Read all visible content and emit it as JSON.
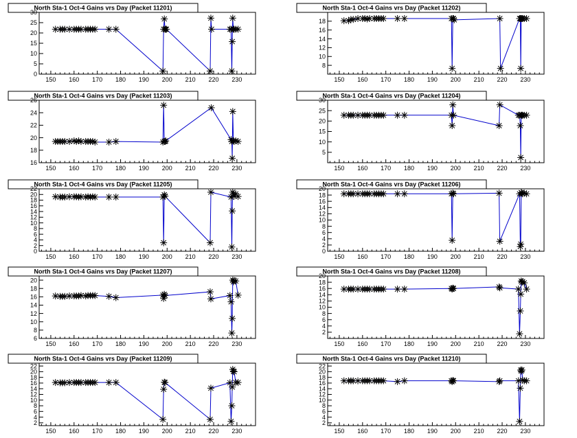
{
  "chart_data": [
    {
      "type": "line",
      "title": "North Sta-1 Oct-4 Gains vrs Day (Packet 11201)",
      "xlim": [
        145,
        238
      ],
      "ylim": [
        0,
        30
      ],
      "xticks": [
        150,
        160,
        170,
        180,
        190,
        200,
        210,
        220,
        230
      ],
      "yticks": [
        0,
        5,
        10,
        15,
        20,
        25,
        30
      ],
      "series": [
        {
          "x": [
            152,
            154,
            155,
            156,
            158,
            160,
            161,
            162,
            163,
            165,
            166,
            167,
            168,
            169,
            175,
            178,
            198.2,
            198.5,
            198.8,
            199.1,
            199.4,
            199.7,
            218.5,
            218.8,
            219.1,
            227,
            227.5,
            227.8,
            228,
            228.2,
            228.5,
            228.8,
            229.5,
            230.5
          ],
          "y": [
            21.8,
            21.8,
            21.8,
            21.8,
            21.8,
            21.8,
            21.8,
            21.8,
            21.8,
            21.8,
            21.8,
            21.8,
            21.8,
            21.8,
            21.8,
            21.8,
            1.5,
            21.8,
            26.8,
            21.8,
            21.8,
            21.8,
            1.5,
            27.2,
            21.8,
            21.8,
            21.8,
            1.5,
            15.8,
            27.2,
            21.8,
            21.8,
            21.8,
            21.8
          ]
        }
      ]
    },
    {
      "type": "line",
      "title": "North Sta-1 Oct-4 Gains vrs Day (Packet 11202)",
      "xlim": [
        145,
        238
      ],
      "ylim": [
        6,
        20
      ],
      "xticks": [
        150,
        160,
        170,
        180,
        190,
        200,
        210,
        220,
        230
      ],
      "yticks": [
        8,
        10,
        12,
        14,
        16,
        18
      ],
      "series": [
        {
          "x": [
            152,
            154,
            155,
            156,
            158,
            160,
            161,
            162,
            163,
            165,
            166,
            167,
            168,
            169,
            175,
            178,
            198.2,
            198.5,
            198.8,
            199.1,
            199.4,
            219,
            219.3,
            227.5,
            227.8,
            228,
            228.2,
            228.5,
            228.8,
            229.5,
            230.5
          ],
          "y": [
            18.1,
            18.1,
            18.4,
            18.4,
            18.6,
            18.6,
            18.6,
            18.5,
            18.6,
            18.6,
            18.6,
            18.6,
            18.6,
            18.6,
            18.6,
            18.6,
            18.6,
            7.3,
            18.6,
            18.6,
            18.3,
            18.6,
            7.3,
            18.6,
            18.6,
            7.3,
            18.6,
            18.6,
            18.6,
            18.6,
            18.6
          ]
        }
      ]
    },
    {
      "type": "line",
      "title": "North Sta-1 Oct-4 Gains vrs Day (Packet 11203)",
      "xlim": [
        145,
        238
      ],
      "ylim": [
        16,
        26
      ],
      "xticks": [
        150,
        160,
        170,
        180,
        190,
        200,
        210,
        220,
        230
      ],
      "yticks": [
        16,
        18,
        20,
        22,
        24,
        26
      ],
      "series": [
        {
          "x": [
            152,
            153,
            154,
            155,
            156,
            158,
            160,
            161,
            162,
            163,
            165,
            166,
            167,
            168,
            169,
            175,
            178,
            198.2,
            198.5,
            198.8,
            199.1,
            199.4,
            219,
            227.5,
            227.8,
            228,
            228.2,
            228.5,
            228.8,
            229.5,
            230.5
          ],
          "y": [
            19.4,
            19.4,
            19.4,
            19.4,
            19.4,
            19.4,
            19.5,
            19.4,
            19.5,
            19.4,
            19.4,
            19.4,
            19.4,
            19.4,
            19.3,
            19.3,
            19.4,
            19.3,
            25.2,
            19.4,
            19.4,
            19.5,
            24.8,
            19.7,
            19.4,
            16.7,
            24.2,
            19.5,
            19.4,
            19.5,
            19.4
          ]
        }
      ]
    },
    {
      "type": "line",
      "title": "North Sta-1 Oct-4 Gains vrs Day (Packet 11204)",
      "xlim": [
        145,
        238
      ],
      "ylim": [
        0,
        30
      ],
      "xticks": [
        150,
        160,
        170,
        180,
        190,
        200,
        210,
        220,
        230
      ],
      "yticks": [
        5,
        10,
        15,
        20,
        25,
        30
      ],
      "series": [
        {
          "x": [
            152,
            154,
            155,
            156,
            158,
            160,
            161,
            162,
            163,
            165,
            166,
            167,
            168,
            169,
            175,
            178,
            198.2,
            198.5,
            198.8,
            199.1,
            218.7,
            219,
            227,
            227.5,
            227.8,
            228,
            228.2,
            228.5,
            228.8,
            229.5,
            230.5
          ],
          "y": [
            22.8,
            22.8,
            22.8,
            22.8,
            22.8,
            22.8,
            22.8,
            22.8,
            22.8,
            22.8,
            22.8,
            22.8,
            22.8,
            22.8,
            22.8,
            22.8,
            22.8,
            17.8,
            27.8,
            22.8,
            17.8,
            27.8,
            22.8,
            22.8,
            17.8,
            2.5,
            22.8,
            22.8,
            22.8,
            22.8,
            22.8
          ]
        }
      ]
    },
    {
      "type": "line",
      "title": "North Sta-1 Oct-4 Gains vrs Day (Packet 11205)",
      "xlim": [
        145,
        238
      ],
      "ylim": [
        0,
        22
      ],
      "xticks": [
        150,
        160,
        170,
        180,
        190,
        200,
        210,
        220,
        230
      ],
      "yticks": [
        0,
        2,
        4,
        6,
        8,
        10,
        12,
        14,
        16,
        18,
        20,
        22
      ],
      "series": [
        {
          "x": [
            152,
            154,
            155,
            156,
            158,
            160,
            161,
            162,
            163,
            165,
            166,
            167,
            168,
            169,
            175,
            178,
            198.2,
            198.5,
            198.8,
            199.1,
            218.5,
            218.8,
            227.5,
            227.8,
            228,
            228.2,
            228.5,
            228.8,
            229.5,
            230.5
          ],
          "y": [
            19.2,
            19.1,
            19.1,
            19.1,
            19.2,
            19.2,
            19.2,
            19.1,
            19.2,
            19.1,
            19.2,
            19.1,
            19.2,
            19.1,
            19.1,
            19.1,
            19.1,
            3,
            19.9,
            19.4,
            3,
            20.8,
            19.1,
            1.5,
            14.2,
            20.8,
            20.2,
            19.4,
            20.2,
            19.3
          ]
        }
      ]
    },
    {
      "type": "line",
      "title": "North Sta-1 Oct-4 Gains vrs Day (Packet 11206)",
      "xlim": [
        145,
        238
      ],
      "ylim": [
        0,
        20
      ],
      "xticks": [
        150,
        160,
        170,
        180,
        190,
        200,
        210,
        220,
        230
      ],
      "yticks": [
        0,
        2,
        4,
        6,
        8,
        10,
        12,
        14,
        16,
        18,
        20
      ],
      "series": [
        {
          "x": [
            152,
            154,
            155,
            156,
            158,
            160,
            161,
            162,
            163,
            165,
            166,
            167,
            168,
            169,
            175,
            178,
            198.2,
            198.5,
            198.8,
            199.1,
            218.7,
            219,
            227.5,
            227.8,
            228,
            228.2,
            228.5,
            228.8,
            229.5,
            230.5
          ],
          "y": [
            18.4,
            18.4,
            18.4,
            18.4,
            18.4,
            18.4,
            18.4,
            18.4,
            18.4,
            18.4,
            18.4,
            18.4,
            18.4,
            18.4,
            18.4,
            18.4,
            18.4,
            3.5,
            18.6,
            18.4,
            18.6,
            3.2,
            18.4,
            1.5,
            2.3,
            18.8,
            18.6,
            18.4,
            18.6,
            18.4
          ]
        }
      ]
    },
    {
      "type": "line",
      "title": "North Sta-1 Oct-4 Gains vrs Day (Packet 11207)",
      "xlim": [
        145,
        238
      ],
      "ylim": [
        6,
        21
      ],
      "xticks": [
        150,
        160,
        170,
        180,
        190,
        200,
        210,
        220,
        230
      ],
      "yticks": [
        6,
        8,
        10,
        12,
        14,
        16,
        18,
        20
      ],
      "series": [
        {
          "x": [
            152,
            154,
            155,
            156,
            158,
            160,
            161,
            162,
            163,
            165,
            166,
            167,
            168,
            169,
            175,
            178,
            198.2,
            198.5,
            198.8,
            199.1,
            218.5,
            218.8,
            227,
            227.5,
            227.8,
            228,
            228.2,
            228.5,
            228.8,
            229.5,
            230.5
          ],
          "y": [
            16.2,
            16.1,
            16.1,
            16.1,
            16.2,
            16.2,
            16.2,
            16.2,
            16.3,
            16.2,
            16.3,
            16.3,
            16.3,
            16.3,
            16.1,
            15.8,
            16.4,
            15.6,
            16.6,
            16.3,
            17.2,
            15.5,
            16.3,
            14.8,
            7.3,
            10.8,
            20,
            19.6,
            19.9,
            19.8,
            16.4
          ]
        }
      ]
    },
    {
      "type": "line",
      "title": "North Sta-1 Oct-4 Gains vrs Day (Packet 11208)",
      "xlim": [
        145,
        238
      ],
      "ylim": [
        0,
        20
      ],
      "xticks": [
        150,
        160,
        170,
        180,
        190,
        200,
        210,
        220,
        230
      ],
      "yticks": [
        2,
        4,
        6,
        8,
        10,
        12,
        14,
        16,
        18,
        20
      ],
      "series": [
        {
          "x": [
            152,
            154,
            155,
            156,
            158,
            160,
            161,
            162,
            163,
            165,
            166,
            167,
            168,
            169,
            175,
            178,
            198.2,
            198.5,
            198.8,
            199.1,
            218.7,
            219,
            227,
            227.5,
            227.8,
            228,
            228.2,
            228.5,
            228.8,
            229.5,
            230.5
          ],
          "y": [
            15.8,
            15.8,
            15.8,
            15.8,
            15.8,
            15.8,
            15.8,
            15.8,
            15.8,
            15.8,
            15.8,
            15.8,
            15.8,
            15.8,
            15.8,
            15.8,
            16,
            15.8,
            16.1,
            16,
            16.5,
            16.2,
            15.8,
            1.5,
            8.8,
            14.2,
            18.4,
            18,
            18.2,
            17.8,
            15.8
          ]
        }
      ]
    },
    {
      "type": "line",
      "title": "North Sta-1 Oct-4 Gains vrs Day (Packet 11209)",
      "xlim": [
        145,
        238
      ],
      "ylim": [
        1,
        23
      ],
      "xticks": [
        150,
        160,
        170,
        180,
        190,
        200,
        210,
        220,
        230
      ],
      "yticks": [
        2,
        4,
        6,
        8,
        10,
        12,
        14,
        16,
        18,
        20,
        22
      ],
      "series": [
        {
          "x": [
            152,
            154,
            155,
            156,
            158,
            160,
            161,
            162,
            163,
            165,
            166,
            167,
            168,
            169,
            175,
            178,
            198.2,
            198.5,
            198.8,
            199.1,
            218.5,
            218.8,
            227,
            227.5,
            227.8,
            228,
            228.2,
            228.5,
            228.8,
            229.5,
            230.5
          ],
          "y": [
            16.2,
            16.1,
            16.1,
            16.1,
            16.2,
            16.2,
            16.2,
            16.2,
            16.2,
            16.2,
            16.2,
            16.2,
            16.2,
            16.2,
            16.2,
            16.2,
            3.2,
            13.8,
            16.3,
            16.2,
            3.2,
            14.2,
            16.1,
            2.5,
            8,
            14.6,
            20.8,
            20.2,
            20,
            16.2,
            16.2
          ]
        }
      ]
    },
    {
      "type": "line",
      "title": "North Sta-1 Oct-4 Gains vrs Day (Packet 11210)",
      "xlim": [
        145,
        238
      ],
      "ylim": [
        1,
        23
      ],
      "xticks": [
        150,
        160,
        170,
        180,
        190,
        200,
        210,
        220,
        230
      ],
      "yticks": [
        2,
        4,
        6,
        8,
        10,
        12,
        14,
        16,
        18,
        20,
        22
      ],
      "series": [
        {
          "x": [
            152,
            154,
            155,
            156,
            158,
            160,
            161,
            162,
            163,
            165,
            166,
            167,
            168,
            169,
            175,
            178,
            198.2,
            198.5,
            198.8,
            199.1,
            218.7,
            219,
            227,
            227.5,
            227.8,
            228,
            228.2,
            228.5,
            228.8,
            229.5,
            230.5
          ],
          "y": [
            16.8,
            16.8,
            16.8,
            16.8,
            16.8,
            16.8,
            16.8,
            16.8,
            16.8,
            16.8,
            16.8,
            16.8,
            16.8,
            16.8,
            16.5,
            16.8,
            16.8,
            16.5,
            16.9,
            16.8,
            16.5,
            16.8,
            16.8,
            2.5,
            14.2,
            20.6,
            20.2,
            20.6,
            17,
            16.8,
            16.8
          ]
        }
      ]
    }
  ]
}
